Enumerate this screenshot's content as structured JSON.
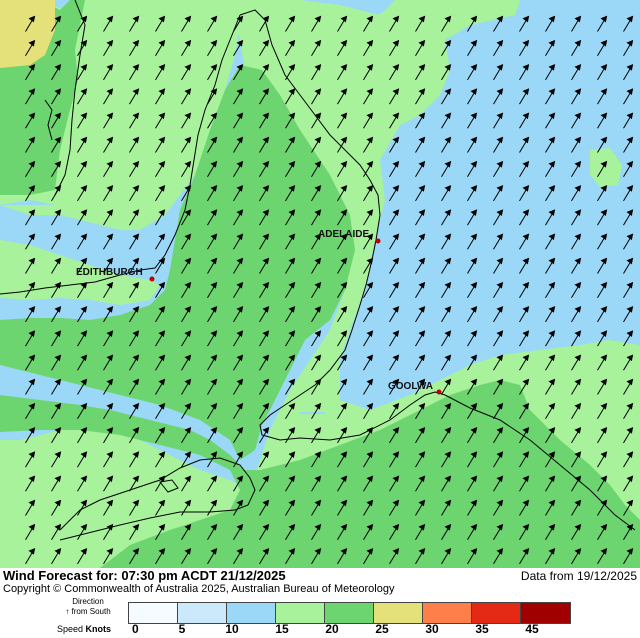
{
  "map": {
    "cities": [
      {
        "name": "ADELAIDE"
      },
      {
        "name": "EDITHBURGH"
      },
      {
        "name": "GOOLWA"
      }
    ],
    "band_colors": {
      "0-5": "#f5fbff",
      "5-10": "#cbe9fb",
      "10-15": "#9bd7f7",
      "15-20": "#a7f29b",
      "20-25": "#6cd56f",
      "25-30": "#e5e17a",
      "30-35": "#ff7f4a",
      "35-40": "#e42a14",
      "40-45": "#a00000"
    },
    "arrow_direction": "from south-southwest"
  },
  "footer": {
    "title": "Wind Forecast for: 07:30 pm ACDT 21/12/2025",
    "data_from": "Data from 19/12/2025",
    "copyright": "Copyright © Commonwealth of Australia 2025, Australian Bureau of Meteorology",
    "direction_label_1": "Direction",
    "direction_label_2": "↑ from South",
    "speed_label": "Speed",
    "speed_unit": "Knots"
  },
  "legend": {
    "colors": [
      "#f5fbff",
      "#cbe9fb",
      "#9bd7f7",
      "#a7f29b",
      "#6cd56f",
      "#e5e17a",
      "#ff7f4a",
      "#e42a14",
      "#a00000"
    ],
    "ticks": [
      "0",
      "5",
      "10",
      "15",
      "20",
      "25",
      "30",
      "35",
      "45"
    ]
  }
}
